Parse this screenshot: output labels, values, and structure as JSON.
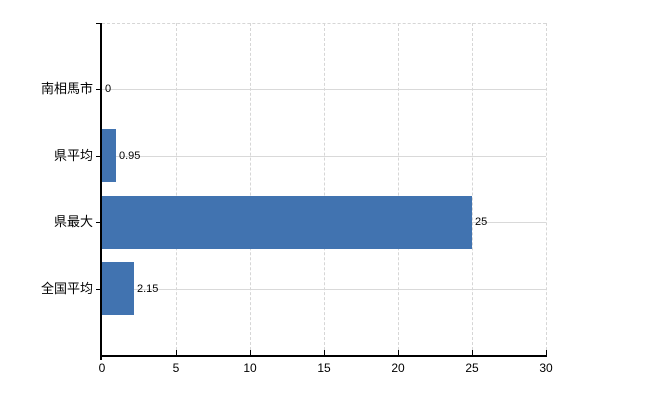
{
  "chart_data": {
    "type": "bar",
    "orientation": "horizontal",
    "title": "",
    "xlabel": "",
    "ylabel": "",
    "categories": [
      "南相馬市",
      "県平均",
      "県最大",
      "全国平均"
    ],
    "values": [
      0,
      0.95,
      25,
      2.15
    ],
    "value_labels": [
      "0",
      "0.95",
      "25",
      "2.15"
    ],
    "xlim": [
      0,
      30
    ],
    "x_ticks": [
      0,
      5,
      10,
      15,
      20,
      25,
      30
    ],
    "x_tick_labels": [
      "0",
      "5",
      "10",
      "15",
      "20",
      "25",
      "30"
    ],
    "legend": "none",
    "grid": {
      "vertical_style": "dashed",
      "horizontal_style": "solid"
    },
    "colors": {
      "bar": "#4173b0",
      "gridline_vertical": "#d6d6d6",
      "gridline_horizontal": "#d9d9d9",
      "axis": "#000000",
      "text": "#000000",
      "background": "#ffffff"
    }
  }
}
